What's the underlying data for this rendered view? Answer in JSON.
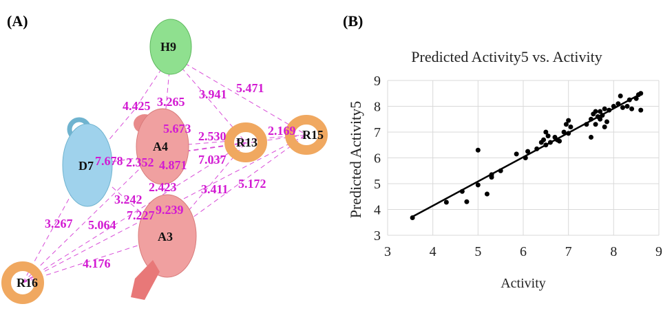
{
  "panel_a": {
    "label": "(A)",
    "nodes": [
      "H9",
      "D7",
      "A4",
      "R13",
      "R15",
      "A3",
      "R16"
    ],
    "distances": [
      "4.425",
      "3.265",
      "3.941",
      "5.471",
      "5.673",
      "2.530",
      "2.169",
      "7.678",
      "2.352",
      "4.871",
      "7.037",
      "2.423",
      "3.411",
      "5.172",
      "3.242",
      "9.239",
      "5.064",
      "7.227",
      "3.267",
      "4.176"
    ]
  },
  "panel_b_label": "(B)",
  "chart_data": {
    "type": "scatter",
    "title": "Predicted Activity5 vs. Activity",
    "x_label": "Activity",
    "y_label": "Predicted Activity5",
    "color": "#000000",
    "grid": true,
    "x": [
      3.55,
      4.3,
      4.65,
      4.75,
      5.0,
      5.0,
      5.2,
      5.3,
      5.3,
      5.5,
      5.85,
      6.05,
      6.1,
      6.3,
      6.4,
      6.45,
      6.5,
      6.5,
      6.55,
      6.6,
      6.7,
      6.75,
      6.8,
      6.9,
      6.95,
      7.0,
      7.0,
      7.05,
      7.4,
      7.5,
      7.5,
      7.55,
      7.6,
      7.6,
      7.65,
      7.7,
      7.7,
      7.75,
      7.8,
      7.8,
      7.85,
      7.9,
      8.0,
      8.1,
      8.15,
      8.2,
      8.3,
      8.35,
      8.4,
      8.5,
      8.55,
      8.6,
      8.6
    ],
    "values": [
      3.68,
      4.28,
      4.7,
      4.3,
      4.95,
      6.3,
      4.6,
      5.35,
      5.25,
      5.5,
      6.15,
      6.0,
      6.25,
      6.35,
      6.6,
      6.7,
      7.0,
      6.5,
      6.85,
      6.6,
      6.8,
      6.7,
      6.65,
      7.0,
      7.3,
      6.95,
      7.45,
      7.2,
      7.3,
      6.8,
      7.5,
      7.7,
      7.3,
      7.8,
      7.6,
      7.5,
      7.8,
      7.65,
      7.2,
      7.9,
      7.4,
      7.85,
      8.0,
      8.1,
      8.4,
      7.95,
      8.0,
      8.25,
      7.9,
      8.3,
      8.45,
      8.5,
      7.85
    ],
    "trendline": {
      "x": [
        3.55,
        8.6
      ],
      "values": [
        3.72,
        8.48
      ]
    },
    "xlim": [
      3,
      9
    ],
    "ylim": [
      3,
      9
    ],
    "xticks": [
      3,
      4,
      5,
      6,
      7,
      8,
      9
    ],
    "yticks": [
      3,
      4,
      5,
      6,
      7,
      8,
      9
    ]
  }
}
